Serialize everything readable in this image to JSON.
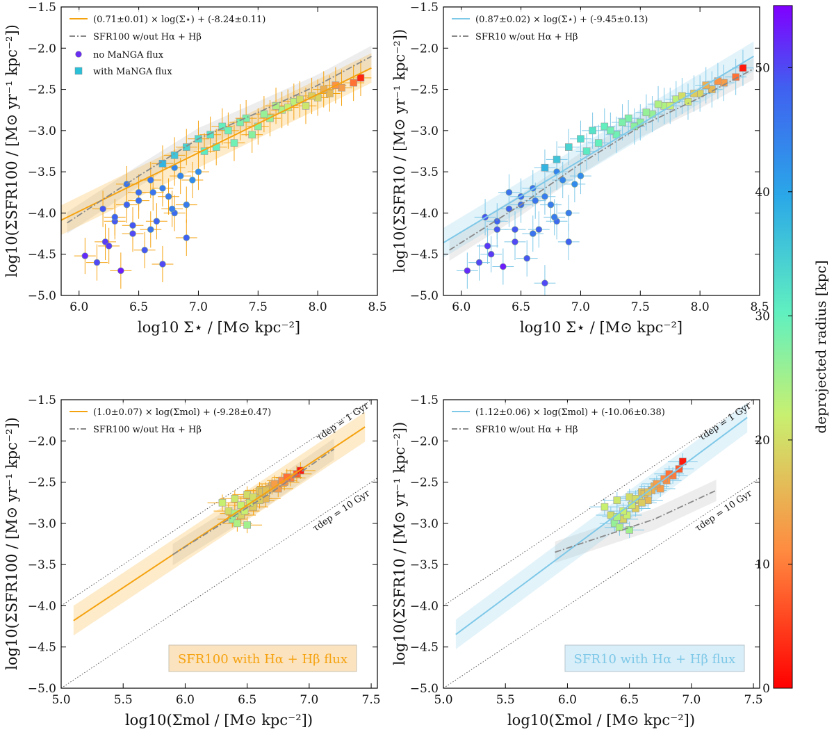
{
  "chart_data": [
    {
      "panel": "top-left",
      "type": "scatter",
      "xlabel": "log10 Σ⋆ / [M⊙ kpc⁻²]",
      "ylabel": "log10(ΣSFR100 / [M⊙ yr⁻¹ kpc⁻²])",
      "xlim": [
        5.85,
        8.5
      ],
      "ylim": [
        -5.0,
        -1.5
      ],
      "xticks": [
        6.0,
        6.5,
        7.0,
        7.5,
        8.0,
        8.5
      ],
      "yticks": [
        -5.0,
        -4.5,
        -4.0,
        -3.5,
        -3.0,
        -2.5,
        -2.0,
        -1.5
      ],
      "x_tick_labels": [
        "6.0",
        "6.5",
        "7.0",
        "7.5",
        "8.0",
        "8.5"
      ],
      "y_tick_labels": [
        "−5.0",
        "−4.5",
        "−4.0",
        "−3.5",
        "−3.0",
        "−2.5",
        "−2.0",
        "−1.5"
      ],
      "legend_position": "top-left",
      "legend": [
        "(0.71±0.01) × log(Σ⋆) + (-8.24±0.11)",
        "SFR100 w/out Hα + Hβ",
        "no MaNGA flux",
        "with MaNGA flux"
      ],
      "fit_line": {
        "slope": 0.71,
        "intercept": -8.24,
        "color": "#f5a20f",
        "x_range": [
          5.85,
          8.45
        ]
      },
      "reference_line": {
        "x": [
          5.9,
          6.5,
          7.0,
          7.5,
          8.0,
          8.45
        ],
        "y": [
          -4.12,
          -3.55,
          -3.1,
          -2.78,
          -2.45,
          -2.1
        ],
        "color": "#888888",
        "style": "dash-dot"
      },
      "series": [
        {
          "name": "no MaNGA flux",
          "marker": "circle",
          "x": [
            6.05,
            6.15,
            6.22,
            6.3,
            6.35,
            6.4,
            6.45,
            6.5,
            6.55,
            6.6,
            6.65,
            6.7,
            6.75,
            6.8,
            6.85,
            6.9,
            6.2,
            6.3,
            6.4,
            6.5,
            6.6,
            6.7,
            6.8,
            6.9,
            7.0,
            6.25,
            6.45,
            6.62,
            6.78,
            6.95
          ],
          "y": [
            -4.52,
            -4.6,
            -4.35,
            -4.1,
            -4.7,
            -3.9,
            -4.25,
            -3.75,
            -4.45,
            -3.6,
            -4.1,
            -4.62,
            -3.8,
            -4.0,
            -3.55,
            -4.3,
            -3.95,
            -4.05,
            -3.65,
            -3.85,
            -4.2,
            -3.7,
            -3.45,
            -3.9,
            -3.5,
            -4.4,
            -4.15,
            -3.75,
            -3.95,
            -3.6
          ],
          "radius_kpc": [
            52,
            50,
            51,
            49,
            53,
            48,
            50,
            47,
            49,
            46,
            48,
            50,
            45,
            47,
            44,
            48,
            49,
            48,
            46,
            47,
            46,
            45,
            44,
            45,
            43,
            51,
            49,
            46,
            45,
            43
          ]
        },
        {
          "name": "with MaNGA flux",
          "marker": "square",
          "x": [
            6.7,
            6.8,
            6.9,
            7.0,
            7.1,
            7.2,
            7.3,
            7.4,
            7.5,
            7.6,
            7.7,
            7.8,
            7.9,
            8.0,
            8.1,
            8.2,
            8.3,
            8.36,
            7.05,
            7.15,
            7.25,
            7.35,
            7.45,
            7.55,
            7.65,
            7.75,
            7.85,
            7.95,
            8.05,
            8.15
          ],
          "y": [
            -3.4,
            -3.3,
            -3.2,
            -3.1,
            -3.05,
            -2.95,
            -3.15,
            -2.85,
            -2.95,
            -2.85,
            -2.75,
            -2.65,
            -2.7,
            -2.6,
            -2.55,
            -2.48,
            -2.42,
            -2.36,
            -3.25,
            -3.2,
            -3.0,
            -2.9,
            -3.05,
            -2.8,
            -2.7,
            -2.72,
            -2.62,
            -2.58,
            -2.5,
            -2.45
          ],
          "radius_kpc": [
            38,
            36,
            34,
            33,
            32,
            30,
            29,
            28,
            27,
            26,
            24,
            23,
            21,
            19,
            16,
            13,
            9,
            3,
            31,
            30,
            29,
            28,
            27,
            26,
            24,
            22,
            20,
            18,
            15,
            12
          ]
        }
      ]
    },
    {
      "panel": "top-right",
      "type": "scatter",
      "xlabel": "log10 Σ⋆ / [M⊙ kpc⁻²]",
      "ylabel": "log10(ΣSFR10 / [M⊙ yr⁻¹ kpc⁻²])",
      "xlim": [
        5.85,
        8.5
      ],
      "ylim": [
        -5.0,
        -1.5
      ],
      "xticks": [
        6.0,
        6.5,
        7.0,
        7.5,
        8.0,
        8.5
      ],
      "yticks": [
        -5.0,
        -4.5,
        -4.0,
        -3.5,
        -3.0,
        -2.5,
        -2.0,
        -1.5
      ],
      "x_tick_labels": [
        "6.0",
        "6.5",
        "7.0",
        "7.5",
        "8.0",
        "8.5"
      ],
      "y_tick_labels": [
        "−5.0",
        "−4.5",
        "−4.0",
        "−3.5",
        "−3.0",
        "−2.5",
        "−2.0",
        "−1.5"
      ],
      "legend_position": "top-left",
      "legend": [
        "(0.87±0.02) × log(Σ⋆) + (-9.45±0.13)",
        "SFR10 w/out Hα + Hβ"
      ],
      "fit_line": {
        "slope": 0.87,
        "intercept": -9.45,
        "color": "#7ec8e8",
        "x_range": [
          5.85,
          8.45
        ]
      },
      "reference_line": {
        "x": [
          5.9,
          6.5,
          7.0,
          7.5,
          8.0,
          8.45
        ],
        "y": [
          -4.45,
          -3.9,
          -3.4,
          -2.95,
          -2.6,
          -2.25
        ],
        "color": "#888888",
        "style": "dash-dot"
      },
      "series": [
        {
          "name": "no MaNGA flux",
          "marker": "circle",
          "x": [
            6.05,
            6.15,
            6.22,
            6.3,
            6.35,
            6.4,
            6.45,
            6.5,
            6.55,
            6.6,
            6.65,
            6.7,
            6.75,
            6.8,
            6.85,
            6.9,
            6.2,
            6.3,
            6.4,
            6.5,
            6.6,
            6.7,
            6.8,
            6.9,
            7.0,
            6.25,
            6.45,
            6.62,
            6.78,
            6.95
          ],
          "y": [
            -4.7,
            -4.6,
            -4.4,
            -4.2,
            -4.65,
            -3.95,
            -4.35,
            -3.8,
            -4.55,
            -3.7,
            -4.2,
            -4.85,
            -3.9,
            -4.1,
            -3.6,
            -4.35,
            -4.05,
            -4.1,
            -3.75,
            -3.9,
            -4.25,
            -3.8,
            -3.5,
            -4.0,
            -3.55,
            -4.5,
            -4.2,
            -3.85,
            -4.05,
            -3.65
          ],
          "radius_kpc": [
            52,
            50,
            51,
            49,
            53,
            48,
            50,
            47,
            49,
            46,
            48,
            50,
            45,
            47,
            44,
            48,
            49,
            48,
            46,
            47,
            46,
            45,
            44,
            45,
            43,
            51,
            49,
            46,
            45,
            43
          ]
        },
        {
          "name": "with MaNGA flux",
          "marker": "square",
          "x": [
            6.7,
            6.8,
            6.9,
            7.0,
            7.1,
            7.2,
            7.3,
            7.4,
            7.5,
            7.6,
            7.7,
            7.8,
            7.9,
            8.0,
            8.1,
            8.2,
            8.3,
            8.36,
            7.05,
            7.15,
            7.25,
            7.35,
            7.45,
            7.55,
            7.65,
            7.75,
            7.85,
            7.95,
            8.05,
            8.15
          ],
          "y": [
            -3.45,
            -3.35,
            -3.2,
            -3.1,
            -3.0,
            -2.95,
            -3.05,
            -2.85,
            -2.9,
            -2.8,
            -2.7,
            -2.62,
            -2.65,
            -2.55,
            -2.5,
            -2.42,
            -2.35,
            -2.24,
            -3.25,
            -3.15,
            -3.0,
            -2.9,
            -2.95,
            -2.78,
            -2.68,
            -2.7,
            -2.58,
            -2.55,
            -2.45,
            -2.4
          ],
          "radius_kpc": [
            38,
            36,
            34,
            33,
            32,
            30,
            29,
            28,
            27,
            26,
            24,
            23,
            21,
            19,
            16,
            13,
            9,
            2,
            31,
            30,
            29,
            28,
            27,
            26,
            24,
            22,
            20,
            18,
            15,
            12
          ]
        }
      ]
    },
    {
      "panel": "bottom-left",
      "type": "scatter",
      "xlabel": "log10(Σmol / [M⊙ kpc⁻²])",
      "ylabel": "log10(ΣSFR100 / [M⊙ yr⁻¹ kpc⁻²])",
      "xlim": [
        5.0,
        7.55
      ],
      "ylim": [
        -5.0,
        -1.5
      ],
      "xticks": [
        5.0,
        5.5,
        6.0,
        6.5,
        7.0,
        7.5
      ],
      "yticks": [
        -5.0,
        -4.5,
        -4.0,
        -3.5,
        -3.0,
        -2.5,
        -2.0,
        -1.5
      ],
      "x_tick_labels": [
        "5.0",
        "5.5",
        "6.0",
        "6.5",
        "7.0",
        "7.5"
      ],
      "y_tick_labels": [
        "−5.0",
        "−4.5",
        "−4.0",
        "−3.5",
        "−3.0",
        "−2.5",
        "−2.0",
        "−1.5"
      ],
      "legend_position": "top-left",
      "legend": [
        "(1.0±0.07) × log(Σmol) + (-9.28±0.47)",
        "SFR100 w/out Hα + Hβ"
      ],
      "box_label": "SFR100 with Hα + Hβ flux",
      "tdep_labels": [
        "τdep = 1 Gyr",
        "τdep = 10 Gyr"
      ],
      "fit_line": {
        "slope": 1.0,
        "intercept": -9.28,
        "color": "#f5a20f",
        "x_range": [
          5.1,
          7.45
        ]
      },
      "reference_line": {
        "x": [
          5.9,
          6.3,
          6.7,
          7.2
        ],
        "y": [
          -3.38,
          -3.0,
          -2.62,
          -2.1
        ],
        "color": "#888888",
        "style": "dash-dot"
      },
      "series": [
        {
          "name": "with MaNGA flux",
          "marker": "square",
          "x": [
            6.3,
            6.35,
            6.4,
            6.45,
            6.5,
            6.55,
            6.6,
            6.65,
            6.7,
            6.75,
            6.8,
            6.85,
            6.9,
            6.93,
            6.38,
            6.42,
            6.48,
            6.52,
            6.58,
            6.62,
            6.68,
            6.72,
            6.78,
            6.82,
            6.45,
            6.55,
            6.65,
            6.4,
            6.5,
            6.6
          ],
          "y": [
            -2.75,
            -2.85,
            -2.7,
            -2.9,
            -2.65,
            -2.8,
            -2.6,
            -2.7,
            -2.55,
            -2.58,
            -2.5,
            -2.45,
            -2.4,
            -2.36,
            -2.95,
            -3.0,
            -2.85,
            -2.75,
            -2.7,
            -2.62,
            -2.58,
            -2.52,
            -2.48,
            -2.44,
            -2.78,
            -2.68,
            -2.6,
            -2.88,
            -3.02,
            -2.72
          ],
          "radius_kpc": [
            22,
            20,
            21,
            19,
            20,
            18,
            17,
            16,
            15,
            13,
            12,
            10,
            7,
            2,
            26,
            24,
            22,
            21,
            19,
            17,
            15,
            13,
            11,
            9,
            22,
            20,
            17,
            24,
            25,
            18
          ]
        }
      ]
    },
    {
      "panel": "bottom-right",
      "type": "scatter",
      "xlabel": "log10(Σmol / [M⊙ kpc⁻²])",
      "ylabel": "log10(ΣSFR10 / [M⊙ yr⁻¹ kpc⁻²])",
      "xlim": [
        5.0,
        7.55
      ],
      "ylim": [
        -5.0,
        -1.5
      ],
      "xticks": [
        5.0,
        5.5,
        6.0,
        6.5,
        7.0,
        7.5
      ],
      "yticks": [
        -5.0,
        -4.5,
        -4.0,
        -3.5,
        -3.0,
        -2.5,
        -2.0,
        -1.5
      ],
      "x_tick_labels": [
        "5.0",
        "5.5",
        "6.0",
        "6.5",
        "7.0",
        "7.5"
      ],
      "y_tick_labels": [
        "−5.0",
        "−4.5",
        "−4.0",
        "−3.5",
        "−3.0",
        "−2.5",
        "−2.0",
        "−1.5"
      ],
      "legend_position": "top-left",
      "legend": [
        "(1.12±0.06) × log(Σmol) + (-10.06±0.38)",
        "SFR10 w/out Hα + Hβ"
      ],
      "box_label": "SFR10 with Hα + Hβ flux",
      "tdep_labels": [
        "τdep = 1 Gyr",
        "τdep = 10 Gyr"
      ],
      "fit_line": {
        "slope": 1.12,
        "intercept": -10.06,
        "color": "#7ec8e8",
        "x_range": [
          5.1,
          7.45
        ]
      },
      "reference_line": {
        "x": [
          5.9,
          6.3,
          6.7,
          7.2
        ],
        "y": [
          -3.35,
          -3.15,
          -2.95,
          -2.6
        ],
        "color": "#888888",
        "style": "dash-dot"
      },
      "series": [
        {
          "name": "with MaNGA flux",
          "marker": "square",
          "x": [
            6.3,
            6.35,
            6.4,
            6.45,
            6.5,
            6.55,
            6.6,
            6.65,
            6.7,
            6.75,
            6.8,
            6.85,
            6.9,
            6.93,
            6.38,
            6.42,
            6.48,
            6.52,
            6.58,
            6.62,
            6.68,
            6.72,
            6.78,
            6.82,
            6.45,
            6.55,
            6.65,
            6.4,
            6.5,
            6.6
          ],
          "y": [
            -2.8,
            -2.9,
            -2.72,
            -2.95,
            -2.68,
            -2.82,
            -2.62,
            -2.72,
            -2.55,
            -2.58,
            -2.48,
            -2.42,
            -2.34,
            -2.25,
            -3.0,
            -3.05,
            -2.9,
            -2.78,
            -2.72,
            -2.64,
            -2.6,
            -2.52,
            -2.46,
            -2.4,
            -2.85,
            -2.7,
            -2.62,
            -2.92,
            -3.08,
            -2.75
          ],
          "radius_kpc": [
            22,
            20,
            21,
            19,
            20,
            18,
            17,
            16,
            15,
            13,
            12,
            10,
            7,
            2,
            26,
            24,
            22,
            21,
            19,
            17,
            15,
            13,
            11,
            9,
            22,
            20,
            17,
            24,
            25,
            18
          ]
        }
      ]
    }
  ],
  "colorbar": {
    "label": "deprojected radius [kpc]",
    "range": [
      0,
      55
    ],
    "ticks": [
      0,
      10,
      20,
      30,
      40,
      50
    ],
    "tick_labels": [
      "0",
      "10",
      "20",
      "30",
      "40",
      "50"
    ],
    "colormap": "rainbow"
  }
}
